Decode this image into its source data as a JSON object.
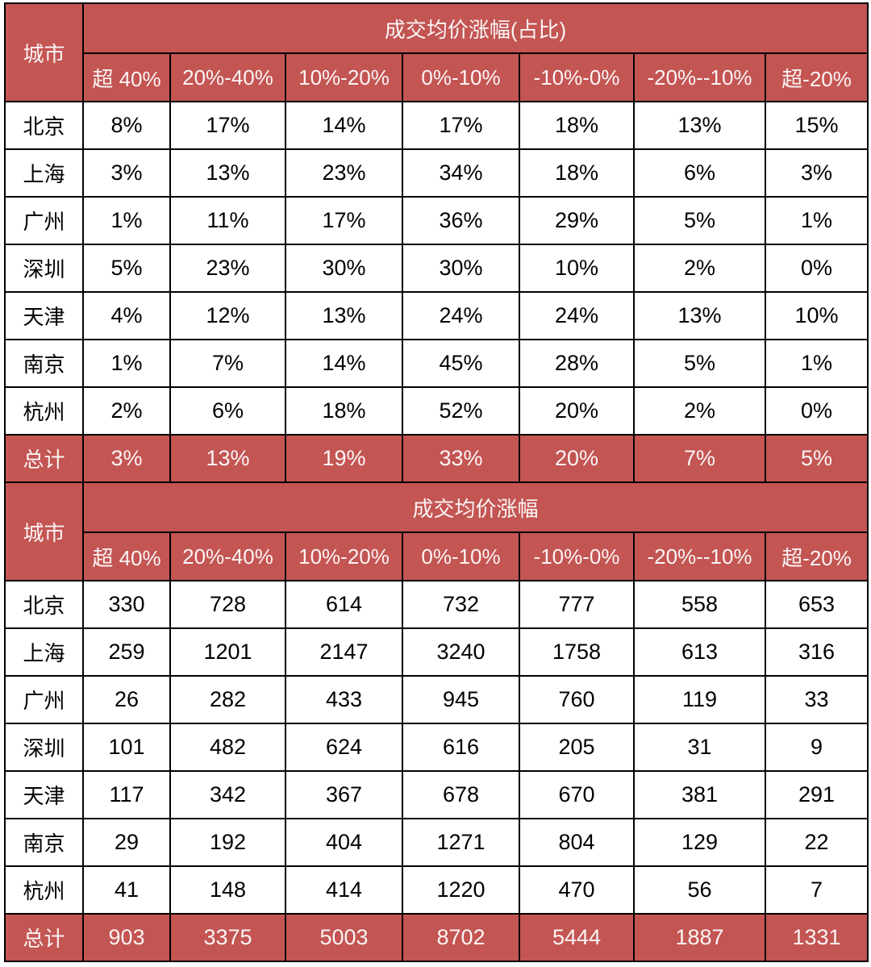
{
  "colors": {
    "header_bg": "#c35553",
    "grid_line": "#000000",
    "header_text": "#fbf4f4",
    "body_text": "#000000"
  },
  "chart_data": [
    {
      "type": "table",
      "title": "成交均价涨幅(占比)",
      "city_header": "城市",
      "columns": [
        "超 40%",
        "20%-40%",
        "10%-20%",
        "0%-10%",
        "-10%-0%",
        "-20%--10%",
        "超-20%"
      ],
      "rows": [
        {
          "city": "北京",
          "values": [
            "8%",
            "17%",
            "14%",
            "17%",
            "18%",
            "13%",
            "15%"
          ]
        },
        {
          "city": "上海",
          "values": [
            "3%",
            "13%",
            "23%",
            "34%",
            "18%",
            "6%",
            "3%"
          ]
        },
        {
          "city": "广州",
          "values": [
            "1%",
            "11%",
            "17%",
            "36%",
            "29%",
            "5%",
            "1%"
          ]
        },
        {
          "city": "深圳",
          "values": [
            "5%",
            "23%",
            "30%",
            "30%",
            "10%",
            "2%",
            "0%"
          ]
        },
        {
          "city": "天津",
          "values": [
            "4%",
            "12%",
            "13%",
            "24%",
            "24%",
            "13%",
            "10%"
          ]
        },
        {
          "city": "南京",
          "values": [
            "1%",
            "7%",
            "14%",
            "45%",
            "28%",
            "5%",
            "1%"
          ]
        },
        {
          "city": "杭州",
          "values": [
            "2%",
            "6%",
            "18%",
            "52%",
            "20%",
            "2%",
            "0%"
          ]
        }
      ],
      "total": {
        "city": "总计",
        "values": [
          "3%",
          "13%",
          "19%",
          "33%",
          "20%",
          "7%",
          "5%"
        ]
      }
    },
    {
      "type": "table",
      "title": "成交均价涨幅",
      "city_header": "城市",
      "columns": [
        "超 40%",
        "20%-40%",
        "10%-20%",
        "0%-10%",
        "-10%-0%",
        "-20%--10%",
        "超-20%"
      ],
      "rows": [
        {
          "city": "北京",
          "values": [
            "330",
            "728",
            "614",
            "732",
            "777",
            "558",
            "653"
          ]
        },
        {
          "city": "上海",
          "values": [
            "259",
            "1201",
            "2147",
            "3240",
            "1758",
            "613",
            "316"
          ]
        },
        {
          "city": "广州",
          "values": [
            "26",
            "282",
            "433",
            "945",
            "760",
            "119",
            "33"
          ]
        },
        {
          "city": "深圳",
          "values": [
            "101",
            "482",
            "624",
            "616",
            "205",
            "31",
            "9"
          ]
        },
        {
          "city": "天津",
          "values": [
            "117",
            "342",
            "367",
            "678",
            "670",
            "381",
            "291"
          ]
        },
        {
          "city": "南京",
          "values": [
            "29",
            "192",
            "404",
            "1271",
            "804",
            "129",
            "22"
          ]
        },
        {
          "city": "杭州",
          "values": [
            "41",
            "148",
            "414",
            "1220",
            "470",
            "56",
            "7"
          ]
        }
      ],
      "total": {
        "city": "总计",
        "values": [
          "903",
          "3375",
          "5003",
          "8702",
          "5444",
          "1887",
          "1331"
        ]
      }
    }
  ]
}
